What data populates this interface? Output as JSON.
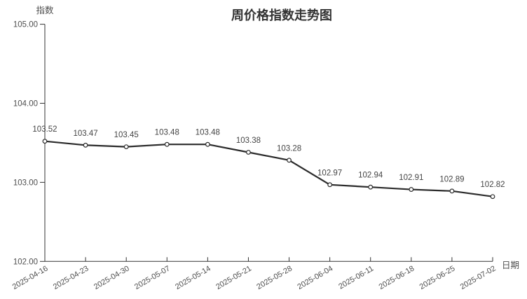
{
  "page": {
    "background": "#ffffff"
  },
  "chart": {
    "title": "周价格指数走势图",
    "y_axis_name": "指数",
    "x_axis_name": "日期",
    "y_tick_labels": [
      "105.00",
      "104.00",
      "103.00",
      "102.00"
    ],
    "colors": {
      "line": "#2b2b2b",
      "axis": "#333333",
      "tick_text": "#4e4e4e",
      "data_label_text": "#444444",
      "title_text": "#333333",
      "point_fill": "#ffffff",
      "point_stroke": "#2b2b2b"
    }
  },
  "chart_data": {
    "type": "line",
    "title": "周价格指数走势图",
    "xlabel": "日期",
    "ylabel": "指数",
    "x": [
      "2025-04-16",
      "2025-04-23",
      "2025-04-30",
      "2025-05-07",
      "2025-05-14",
      "2025-05-21",
      "2025-05-28",
      "2025-06-04",
      "2025-06-11",
      "2025-06-18",
      "2025-06-25",
      "2025-07-02"
    ],
    "values": [
      103.52,
      103.47,
      103.45,
      103.48,
      103.48,
      103.38,
      103.28,
      102.97,
      102.94,
      102.91,
      102.89,
      102.82
    ],
    "ylim": [
      102.0,
      105.0
    ],
    "y_ticks": [
      105.0,
      104.0,
      103.0,
      102.0
    ],
    "grid": false,
    "legend": false,
    "data_labels": true,
    "x_label_rotation": -30,
    "marker": "circle"
  }
}
